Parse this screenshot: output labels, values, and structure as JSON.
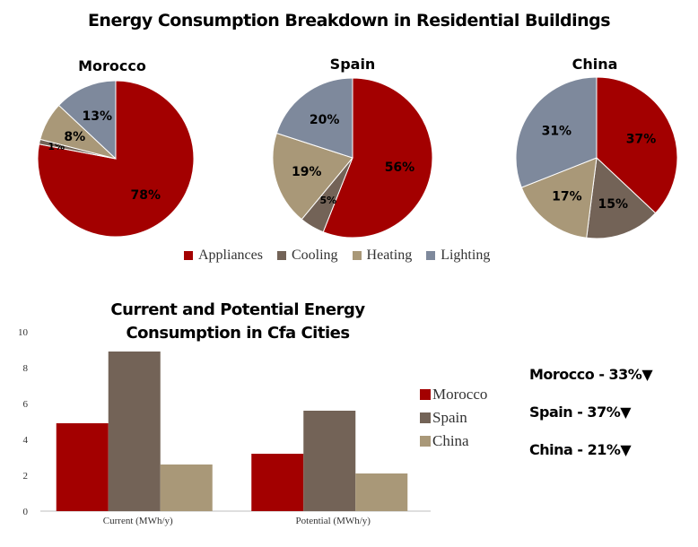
{
  "title": "Energy Consumption Breakdown in Residential Buildings",
  "colors": {
    "Appliances": "#a30000",
    "Cooling": "#736357",
    "Heating": "#a99878",
    "Lighting": "#7e899c"
  },
  "chart_data": [
    {
      "type": "pie",
      "title": "Morocco",
      "labels": [
        "Appliances",
        "Cooling",
        "Heating",
        "Lighting"
      ],
      "values": [
        78,
        1,
        8,
        13
      ],
      "value_labels": [
        "78%",
        "1%",
        "8%",
        "13%"
      ]
    },
    {
      "type": "pie",
      "title": "Spain",
      "labels": [
        "Appliances",
        "Cooling",
        "Heating",
        "Lighting"
      ],
      "values": [
        56,
        5,
        19,
        20
      ],
      "value_labels": [
        "56%",
        "5%",
        "19%",
        "20%"
      ]
    },
    {
      "type": "pie",
      "title": "China",
      "labels": [
        "Appliances",
        "Cooling",
        "Heating",
        "Lighting"
      ],
      "values": [
        37,
        15,
        17,
        31
      ],
      "value_labels": [
        "37%",
        "15%",
        "17%",
        "31%"
      ]
    },
    {
      "type": "bar",
      "title": "Current and Potential Energy Consumption in Cfa Cities",
      "categories": [
        "Current (MWh/y)",
        "Potential (MWh/y)"
      ],
      "series": [
        {
          "name": "Morocco",
          "values": [
            4.9,
            3.2
          ],
          "color": "#a30000"
        },
        {
          "name": "Spain",
          "values": [
            8.9,
            5.6
          ],
          "color": "#736357"
        },
        {
          "name": "China",
          "values": [
            2.6,
            2.1
          ],
          "color": "#a99878"
        }
      ],
      "ylim": [
        0,
        10
      ],
      "yticks": [
        0,
        2,
        4,
        6,
        8,
        10
      ],
      "ytick_labels": [
        "0",
        "2",
        "4",
        "6",
        "8",
        "10"
      ],
      "grid": false,
      "legend": "right"
    }
  ],
  "pie_legend": [
    "Appliances",
    "Cooling",
    "Heating",
    "Lighting"
  ],
  "reductions": [
    {
      "text": "Morocco - 33%▼"
    },
    {
      "text": "Spain - 37%▼"
    },
    {
      "text": "China - 21%▼"
    }
  ]
}
